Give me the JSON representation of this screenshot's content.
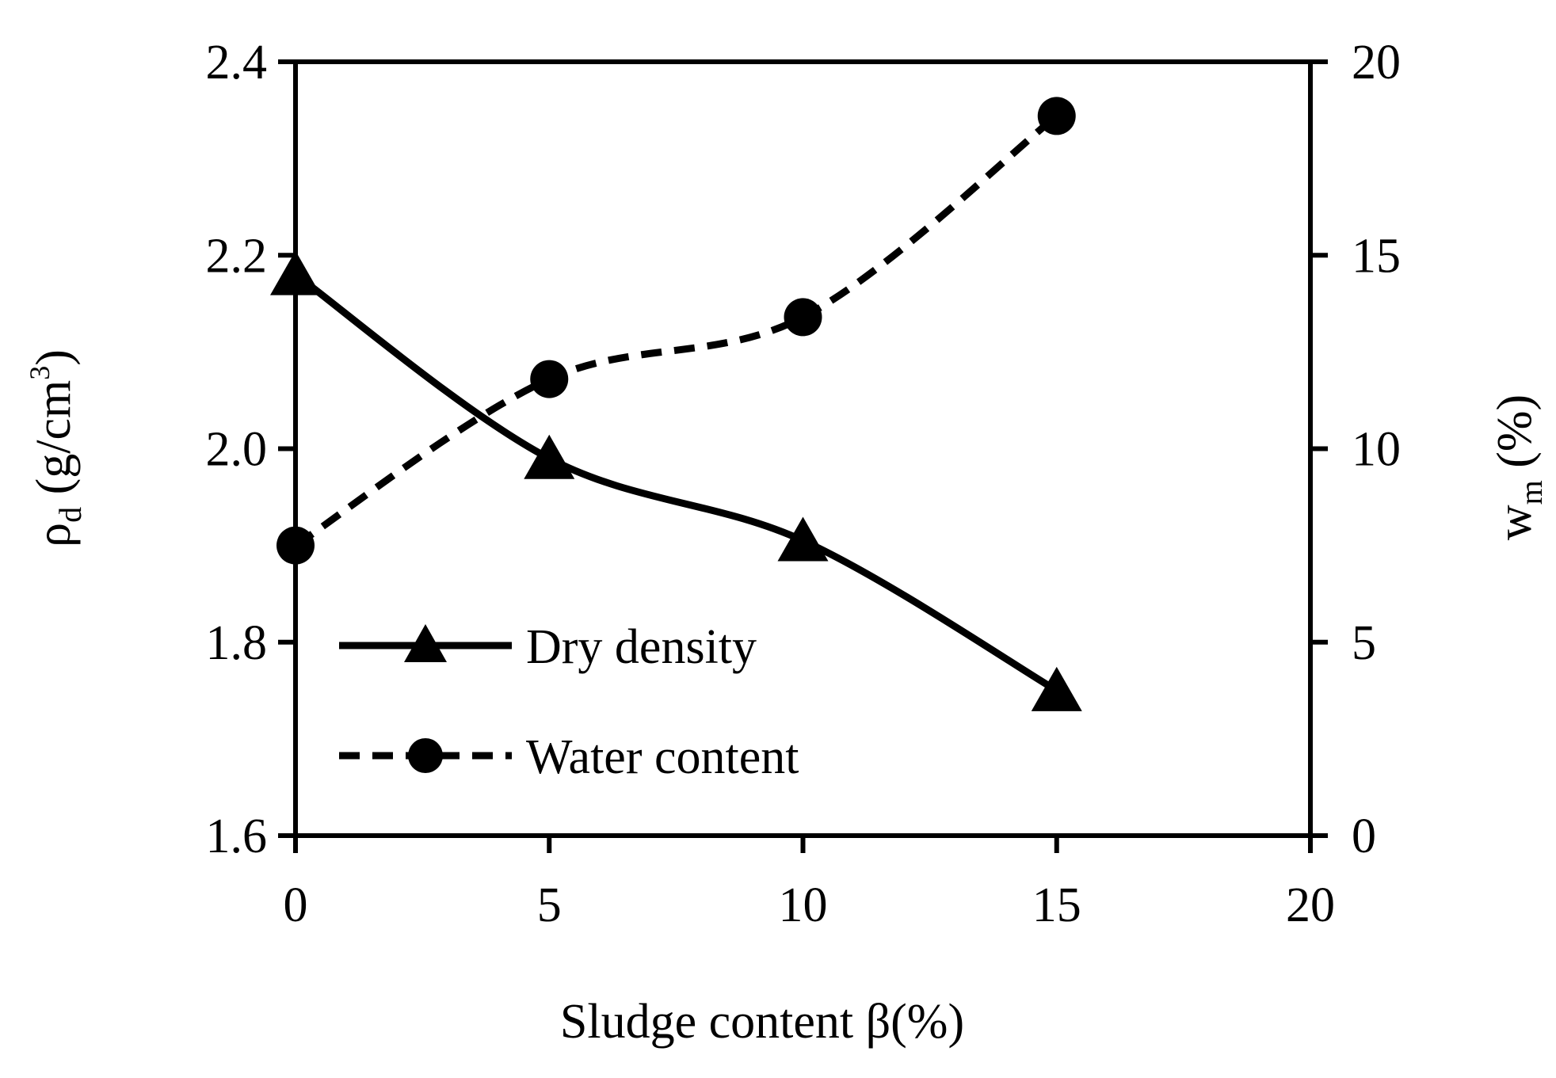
{
  "chart_data": {
    "type": "line",
    "xlabel": "Sludge content β(%)",
    "ylabel_left": {
      "main": "ρ",
      "sub": "d",
      "unit_a": " (g/cm",
      "sup": "3",
      "unit_b": ")"
    },
    "ylabel_right": {
      "main": "w",
      "sub": "m",
      "unit": " (%)"
    },
    "x_ticks": [
      "0",
      "5",
      "10",
      "15",
      "20"
    ],
    "x_range": [
      0,
      20
    ],
    "y_left_ticks": [
      "1.6",
      "1.8",
      "2.0",
      "2.2",
      "2.4"
    ],
    "y_left_range": [
      1.6,
      2.4
    ],
    "y_right_ticks": [
      "0",
      "5",
      "10",
      "15",
      "20"
    ],
    "y_right_range": [
      0,
      20
    ],
    "grid": false,
    "legend_position": "lower-left",
    "series": [
      {
        "name": "Dry density",
        "axis": "left",
        "marker": "triangle",
        "line_style": "solid",
        "x": [
          0,
          5,
          10,
          15
        ],
        "values": [
          2.18,
          1.99,
          1.905,
          1.75
        ]
      },
      {
        "name": "Water content",
        "axis": "right",
        "marker": "circle",
        "line_style": "dashed",
        "x": [
          0,
          5,
          10,
          15
        ],
        "values": [
          7.5,
          11.8,
          13.4,
          18.6
        ]
      }
    ],
    "colors": {
      "ink": "#000000",
      "background": "#ffffff"
    }
  }
}
